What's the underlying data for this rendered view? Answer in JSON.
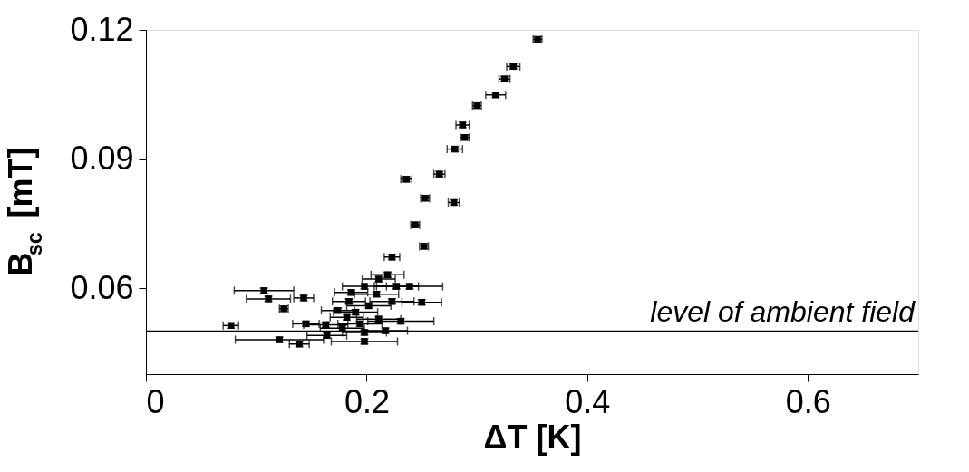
{
  "chart_data": {
    "type": "scatter",
    "xlabel": "ΔT [K]",
    "ylabel": "B$_{sc}$ [mT]",
    "xlim": [
      0,
      0.7
    ],
    "ylim": [
      0.04,
      0.12
    ],
    "xticks": [
      0,
      0.2,
      0.4,
      0.6
    ],
    "yticks": [
      0.06,
      0.09,
      0.12
    ],
    "grid": false,
    "marker": "square",
    "ref_lines": [
      {
        "axis": "y",
        "value": 0.05,
        "label": "level of ambient field",
        "color": "#000000"
      }
    ],
    "series": [
      {
        "color": "#000000",
        "x": [
          0.355,
          0.333,
          0.325,
          0.317,
          0.3,
          0.287,
          0.289,
          0.28,
          0.266,
          0.236,
          0.253,
          0.279,
          0.244,
          0.252,
          0.223,
          0.077,
          0.107,
          0.111,
          0.125,
          0.143,
          0.121,
          0.139,
          0.145,
          0.163,
          0.164,
          0.186,
          0.198,
          0.211,
          0.219,
          0.227,
          0.239,
          0.25,
          0.198,
          0.178,
          0.19,
          0.202,
          0.174,
          0.194,
          0.211,
          0.231,
          0.223,
          0.184,
          0.209,
          0.182,
          0.198,
          0.217
        ],
        "values": [
          0.1178,
          0.1115,
          0.1086,
          0.1049,
          0.1024,
          0.0979,
          0.095,
          0.0923,
          0.0865,
          0.0853,
          0.0809,
          0.0799,
          0.0747,
          0.0697,
          0.0672,
          0.0513,
          0.0594,
          0.0575,
          0.0552,
          0.0577,
          0.048,
          0.047,
          0.0517,
          0.0515,
          0.049,
          0.059,
          0.0604,
          0.0621,
          0.0631,
          0.0604,
          0.0604,
          0.0567,
          0.0476,
          0.0507,
          0.0544,
          0.0559,
          0.0548,
          0.0517,
          0.0528,
          0.0523,
          0.0569,
          0.0569,
          0.0586,
          0.0532,
          0.0497,
          0.0501
        ],
        "xerrors": [
          0.004,
          0.006,
          0.005,
          0.009,
          0.004,
          0.006,
          0.004,
          0.007,
          0.005,
          0.005,
          0.004,
          0.005,
          0.004,
          0.004,
          0.007,
          0.007,
          0.027,
          0.02,
          0.004,
          0.009,
          0.04,
          0.009,
          0.012,
          0.02,
          0.018,
          0.015,
          0.02,
          0.015,
          0.015,
          0.02,
          0.03,
          0.018,
          0.03,
          0.02,
          0.02,
          0.02,
          0.015,
          0.02,
          0.02,
          0.03,
          0.02,
          0.015,
          0.02,
          0.015,
          0.02,
          0.02
        ],
        "errors": [
          0.0006,
          0.0006,
          0.0006,
          0.0006,
          0.0006,
          0.0006,
          0.0006,
          0.0006,
          0.0006,
          0.0006,
          0.0006,
          0.0006,
          0.0006,
          0.0006,
          0.0006,
          0.0006,
          0.0006,
          0.0006,
          0.0006,
          0.0006,
          0.0006,
          0.0006,
          0.0006,
          0.0006,
          0.0006,
          0.0006,
          0.0006,
          0.0006,
          0.0006,
          0.0006,
          0.0006,
          0.0006,
          0.0006,
          0.0006,
          0.0006,
          0.0006,
          0.0006,
          0.0006,
          0.0006,
          0.0006,
          0.0006,
          0.0006,
          0.0006,
          0.0006,
          0.0006,
          0.0006
        ]
      }
    ]
  }
}
